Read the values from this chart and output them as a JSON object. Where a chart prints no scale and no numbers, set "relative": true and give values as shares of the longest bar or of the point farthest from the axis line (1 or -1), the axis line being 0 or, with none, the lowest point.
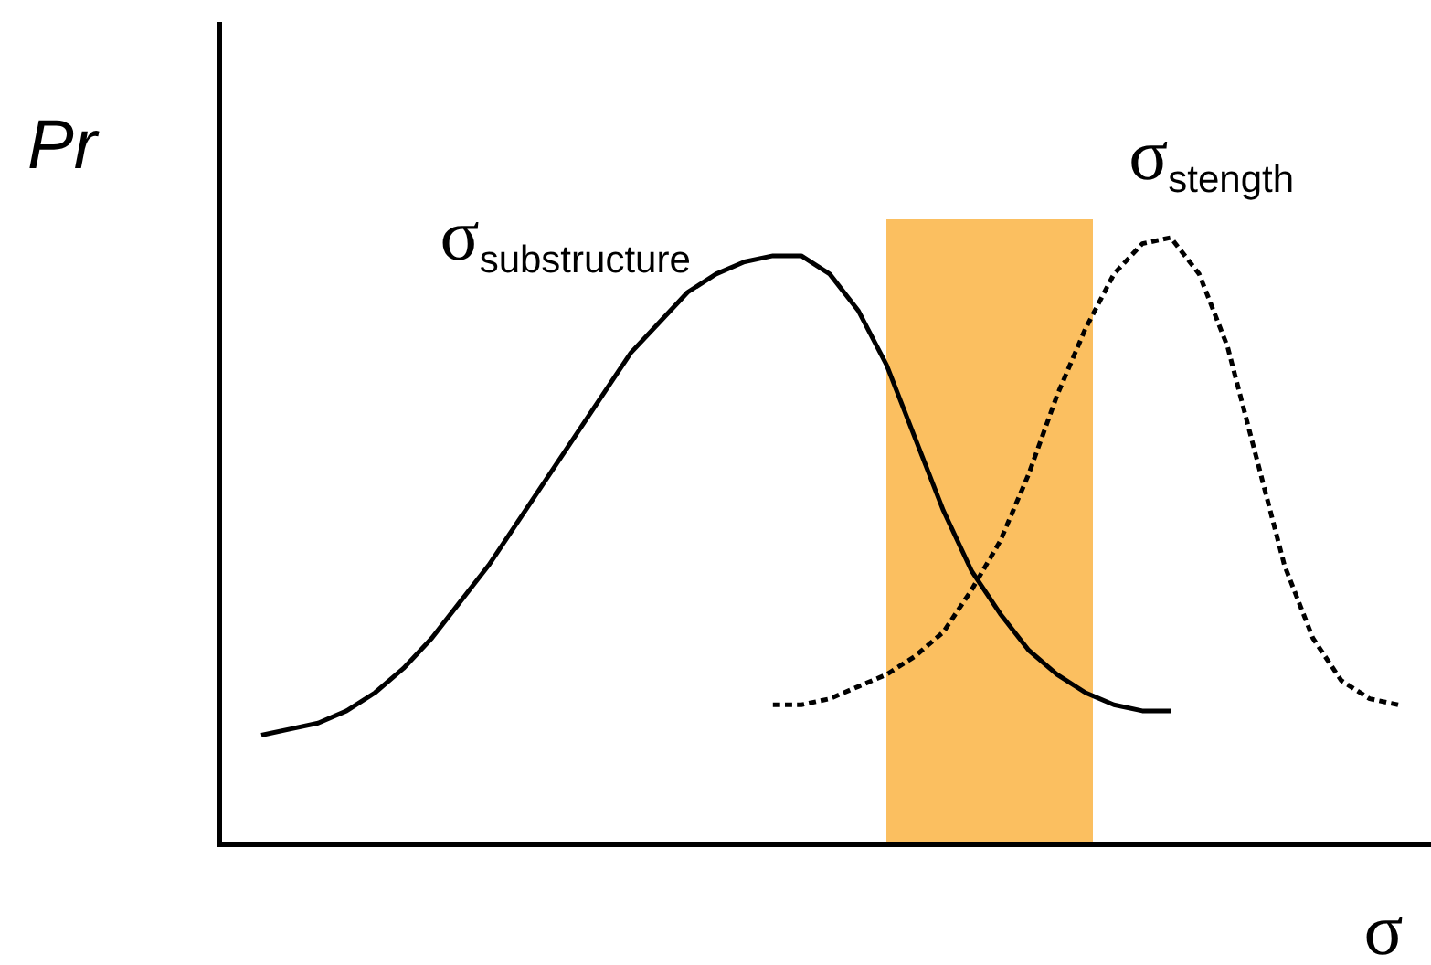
{
  "chart_data": {
    "type": "line",
    "relative": true,
    "xlabel": "σ",
    "ylabel": "Pr",
    "categories": [
      null,
      null,
      null,
      null,
      null,
      null,
      null,
      null,
      null,
      null,
      null,
      null,
      null,
      null,
      null,
      null,
      null,
      null,
      null,
      null,
      null,
      null,
      null,
      null,
      null,
      null,
      null,
      null,
      null,
      null,
      null,
      null,
      null,
      null,
      null,
      null,
      null,
      null,
      null,
      null,
      null
    ],
    "series": [
      {
        "name": "σ$_{substructure}$",
        "color": "#000000",
        "line_style": "solid",
        "values": [
          0.18,
          0.19,
          0.2,
          0.22,
          0.25,
          0.29,
          0.34,
          0.4,
          0.46,
          0.53,
          0.6,
          0.67,
          0.74,
          0.81,
          0.86,
          0.91,
          0.94,
          0.96,
          0.97,
          0.97,
          0.94,
          0.88,
          0.79,
          0.67,
          0.55,
          0.45,
          0.38,
          0.32,
          0.28,
          0.25,
          0.23,
          0.22,
          0.22,
          null,
          null,
          null,
          null,
          null,
          null,
          null,
          null
        ]
      },
      {
        "name": "σ$_{stength}$",
        "color": "#000000",
        "line_style": "dashed",
        "values": [
          null,
          null,
          null,
          null,
          null,
          null,
          null,
          null,
          null,
          null,
          null,
          null,
          null,
          null,
          null,
          null,
          null,
          null,
          0.23,
          0.23,
          0.24,
          0.26,
          0.28,
          0.31,
          0.35,
          0.42,
          0.5,
          0.61,
          0.74,
          0.85,
          0.94,
          0.99,
          1.0,
          0.94,
          0.82,
          0.64,
          0.46,
          0.34,
          0.27,
          0.24,
          0.23
        ]
      }
    ]
  }
}
